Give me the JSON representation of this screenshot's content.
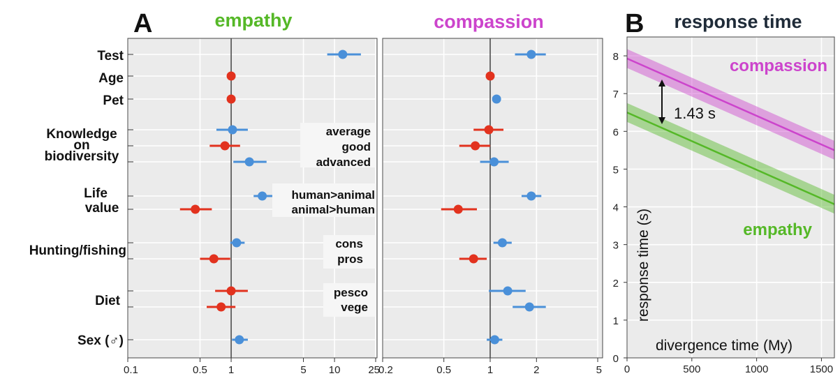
{
  "panel_a": {
    "letter": "A",
    "row_labels": {
      "test": "Test",
      "age": "Age",
      "pet": "Pet",
      "knowledge_line1": "Knowledge",
      "knowledge_line2": "on",
      "knowledge_line3": "biodiversity",
      "life_line1": "Life",
      "life_line2": "value",
      "hunting": "Hunting/fishing",
      "diet": "Diet",
      "sex": "Sex (♂)"
    },
    "sub_labels": {
      "average": "average",
      "good": "good",
      "advanced": "advanced",
      "human_animal": "human>animal",
      "animal_human": "animal>human",
      "cons": "cons",
      "pros": "pros",
      "pesco": "pesco",
      "vege": "vege"
    }
  },
  "panel_b": {
    "letter": "B",
    "title": "response time",
    "compassion_label": "compassion",
    "empathy_label": "empathy",
    "arrow_label": "1.43 s"
  },
  "colors": {
    "empathy": "#55b827",
    "compassion": "#cc44cc",
    "positive": "#4a90d9",
    "negative": "#e2321e"
  },
  "chart_data": [
    {
      "type": "scatter",
      "title": "empathy",
      "scale": "log",
      "xlim": [
        0.1,
        25
      ],
      "xticks": [
        0.1,
        0.5,
        1,
        5,
        10,
        25
      ],
      "xtick_labels": [
        "0.1",
        "0.5",
        "1",
        "5",
        "10",
        "25"
      ],
      "reference_line": 1,
      "points": [
        {
          "row": "Test",
          "est": 12.0,
          "lo": 8.5,
          "hi": 18.0,
          "sign": "positive"
        },
        {
          "row": "Age",
          "est": 1.0,
          "lo": 1.0,
          "hi": 1.0,
          "sign": "negative"
        },
        {
          "row": "Pet",
          "est": 1.0,
          "lo": 1.0,
          "hi": 1.0,
          "sign": "negative"
        },
        {
          "row": "average",
          "est": 1.03,
          "lo": 0.72,
          "hi": 1.45,
          "sign": "positive"
        },
        {
          "row": "good",
          "est": 0.87,
          "lo": 0.62,
          "hi": 1.22,
          "sign": "negative"
        },
        {
          "row": "advanced",
          "est": 1.5,
          "lo": 1.05,
          "hi": 2.2,
          "sign": "positive"
        },
        {
          "row": "human>animal",
          "est": 2.0,
          "lo": 1.65,
          "hi": 2.5,
          "sign": "positive"
        },
        {
          "row": "animal>human",
          "est": 0.45,
          "lo": 0.32,
          "hi": 0.65,
          "sign": "negative"
        },
        {
          "row": "cons",
          "est": 1.13,
          "lo": 0.98,
          "hi": 1.35,
          "sign": "positive"
        },
        {
          "row": "pros",
          "est": 0.68,
          "lo": 0.5,
          "hi": 0.98,
          "sign": "negative"
        },
        {
          "row": "pesco",
          "est": 1.0,
          "lo": 0.7,
          "hi": 1.45,
          "sign": "negative"
        },
        {
          "row": "vege",
          "est": 0.8,
          "lo": 0.58,
          "hi": 1.1,
          "sign": "negative"
        },
        {
          "row": "Sex (♂)",
          "est": 1.2,
          "lo": 1.02,
          "hi": 1.45,
          "sign": "positive"
        }
      ]
    },
    {
      "type": "scatter",
      "title": "compassion",
      "scale": "log",
      "xlim": [
        0.2,
        5
      ],
      "xticks": [
        0.2,
        0.5,
        1,
        2,
        5
      ],
      "xtick_labels": [
        "0.2",
        "0.5",
        "1",
        "2",
        "5"
      ],
      "reference_line": 1,
      "points": [
        {
          "row": "Test",
          "est": 1.85,
          "lo": 1.45,
          "hi": 2.3,
          "sign": "positive"
        },
        {
          "row": "Age",
          "est": 1.0,
          "lo": 1.0,
          "hi": 1.0,
          "sign": "negative"
        },
        {
          "row": "Pet",
          "est": 1.1,
          "lo": 1.06,
          "hi": 1.14,
          "sign": "positive"
        },
        {
          "row": "average",
          "est": 0.98,
          "lo": 0.78,
          "hi": 1.22,
          "sign": "negative"
        },
        {
          "row": "good",
          "est": 0.8,
          "lo": 0.63,
          "hi": 1.0,
          "sign": "negative"
        },
        {
          "row": "advanced",
          "est": 1.06,
          "lo": 0.86,
          "hi": 1.32,
          "sign": "positive"
        },
        {
          "row": "human>animal",
          "est": 1.85,
          "lo": 1.6,
          "hi": 2.15,
          "sign": "positive"
        },
        {
          "row": "animal>human",
          "est": 0.62,
          "lo": 0.48,
          "hi": 0.82,
          "sign": "negative"
        },
        {
          "row": "cons",
          "est": 1.2,
          "lo": 1.05,
          "hi": 1.38,
          "sign": "positive"
        },
        {
          "row": "pros",
          "est": 0.78,
          "lo": 0.63,
          "hi": 0.95,
          "sign": "negative"
        },
        {
          "row": "pesco",
          "est": 1.3,
          "lo": 0.98,
          "hi": 1.7,
          "sign": "positive"
        },
        {
          "row": "vege",
          "est": 1.8,
          "lo": 1.4,
          "hi": 2.3,
          "sign": "positive"
        },
        {
          "row": "Sex (♂)",
          "est": 1.07,
          "lo": 0.95,
          "hi": 1.2,
          "sign": "positive"
        }
      ]
    },
    {
      "type": "line",
      "title": "response time",
      "xlabel": "divergence time (My)",
      "ylabel": "response time (s)",
      "xlim": [
        0,
        1600
      ],
      "ylim": [
        0,
        8.5
      ],
      "xticks": [
        0,
        500,
        1000,
        1500
      ],
      "yticks": [
        0,
        1,
        2,
        3,
        4,
        5,
        6,
        7,
        8
      ],
      "series": [
        {
          "name": "compassion",
          "x": [
            0,
            1600
          ],
          "y": [
            7.93,
            5.5
          ],
          "band": 0.25
        },
        {
          "name": "empathy",
          "x": [
            0,
            1600
          ],
          "y": [
            6.5,
            4.07
          ],
          "band": 0.25
        }
      ],
      "difference": 1.43
    }
  ]
}
